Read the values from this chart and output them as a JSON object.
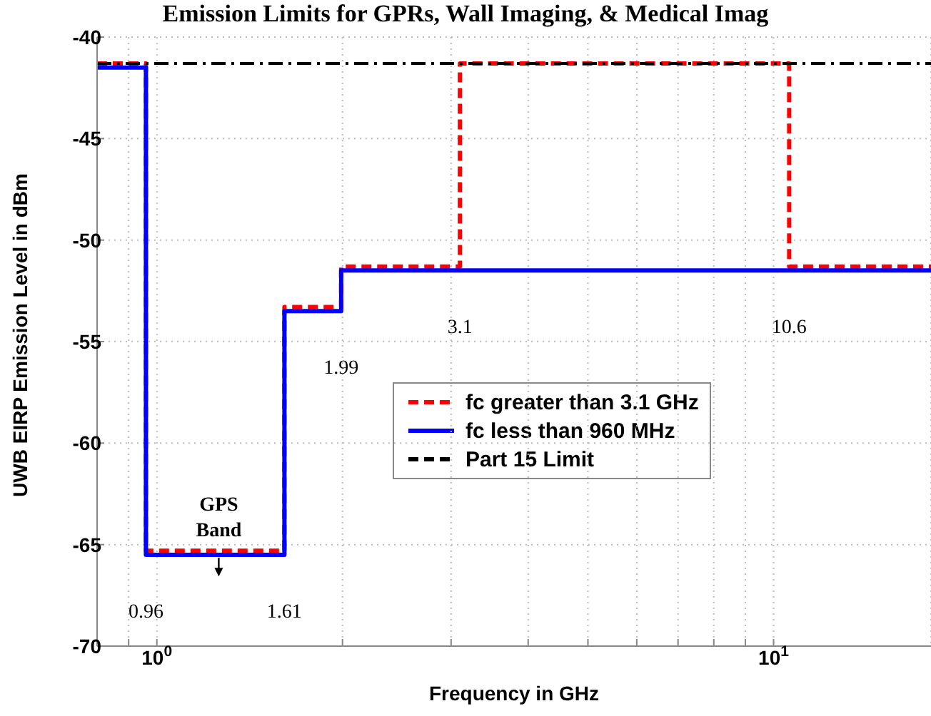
{
  "chart_data": {
    "type": "step",
    "title": "Emission Limits for GPRs, Wall Imaging, & Medical Imag",
    "xlabel": "Frequency in GHz",
    "ylabel": "UWB EIRP Emission Level in dBm",
    "log": "x",
    "grid": true,
    "legend": "right",
    "xlim": [
      0.8,
      18
    ],
    "ylim": [
      -70,
      -40
    ],
    "xticks": [
      {
        "value": 0.9,
        "label": null
      },
      {
        "value": 1,
        "label": "10$^{0}$"
      },
      {
        "value": 2,
        "label": null
      },
      {
        "value": 3,
        "label": null
      },
      {
        "value": 4,
        "label": null
      },
      {
        "value": 5,
        "label": null
      },
      {
        "value": 6,
        "label": null
      },
      {
        "value": 7,
        "label": null
      },
      {
        "value": 8,
        "label": null
      },
      {
        "value": 9,
        "label": null
      },
      {
        "value": 10,
        "label": "10$^{1}$"
      }
    ],
    "yticks": [
      -70,
      -65,
      -60,
      -55,
      -50,
      -45,
      -40
    ],
    "series": [
      {
        "name": "fc greater than 3.1 GHz",
        "color": "#ff0000",
        "line_style": "dashed",
        "x": [
          0.8,
          0.96,
          1.61,
          1.99,
          3.1,
          10.6,
          18
        ],
        "values": [
          -41.3,
          -65.3,
          -53.3,
          -51.3,
          -41.3,
          -51.3,
          -51.3
        ]
      },
      {
        "name": "fc less than 960 MHz",
        "color": "#0000ff",
        "line_style": "solid",
        "x": [
          0.8,
          0.96,
          1.61,
          1.99,
          18
        ],
        "values": [
          -41.5,
          -65.5,
          -53.5,
          -51.5,
          -51.5
        ]
      },
      {
        "name": "Part 15 Limit",
        "color": "#000000",
        "type": "line",
        "line_style": "dashed",
        "x": [
          0.8,
          18
        ],
        "values": [
          -41.3,
          -41.3
        ]
      }
    ],
    "annotations": [
      {
        "text": "GPS Band",
        "x": 1.26,
        "y": -65.3
      },
      {
        "text": "0.96",
        "x": 0.96,
        "y": -65.5
      },
      {
        "text": "1.61",
        "x": 1.61,
        "y": -65.5
      },
      {
        "text": "1.99",
        "x": 1.99,
        "y": -53.5
      },
      {
        "text": "3.1",
        "x": 3.1,
        "y": -51.5
      },
      {
        "text": "10.6",
        "x": 10.6,
        "y": -51.5
      }
    ]
  }
}
